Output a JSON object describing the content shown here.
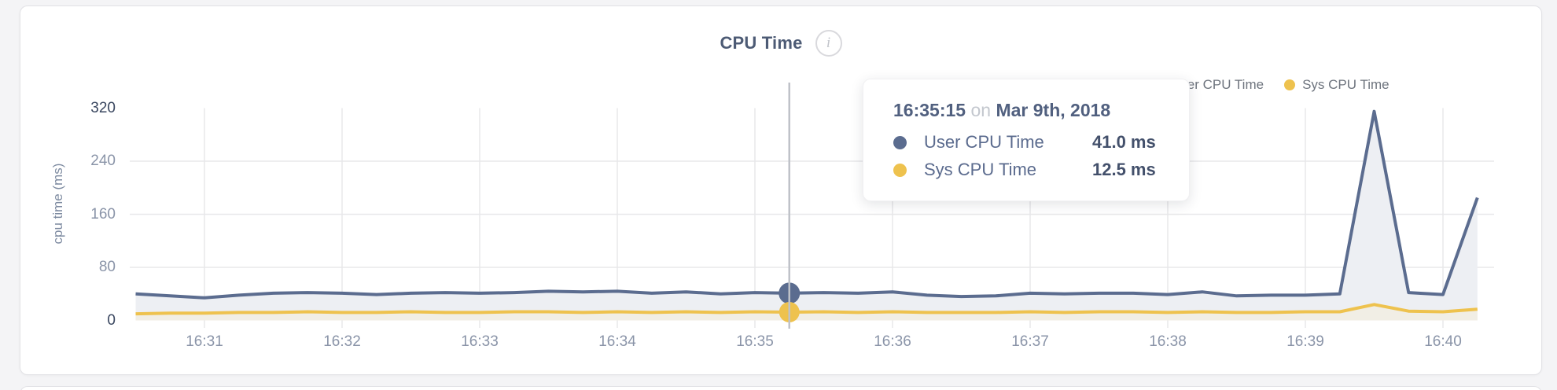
{
  "header": {
    "title": "CPU Time",
    "info_icon": "i"
  },
  "legend": {
    "items": [
      {
        "label": "User CPU Time",
        "color": "#5b6c8f"
      },
      {
        "label": "Sys CPU Time",
        "color": "#eec24e"
      }
    ]
  },
  "tooltip": {
    "time": "16:35:15",
    "connector": "on",
    "date": "Mar 9th, 2018",
    "rows": [
      {
        "label": "User CPU Time",
        "value": "41.0 ms",
        "color": "#5b6c8f"
      },
      {
        "label": "Sys CPU Time",
        "value": "12.5 ms",
        "color": "#eec24e"
      }
    ]
  },
  "chart_data": {
    "type": "area",
    "title": "CPU Time",
    "ylabel": "cpu time (ms)",
    "xlabel": "",
    "ylim": [
      0,
      320
    ],
    "grid": true,
    "legend_position": "top-right",
    "y_ticks": [
      "320",
      "240",
      "160",
      "80",
      "0"
    ],
    "x_ticks": [
      "16:31",
      "16:32",
      "16:33",
      "16:34",
      "16:35",
      "16:36",
      "16:37",
      "16:38",
      "16:39",
      "16:40"
    ],
    "points": {
      "times": [
        "16:30:30",
        "16:30:45",
        "16:31:00",
        "16:31:15",
        "16:31:30",
        "16:31:45",
        "16:32:00",
        "16:32:15",
        "16:32:30",
        "16:32:45",
        "16:33:00",
        "16:33:15",
        "16:33:30",
        "16:33:45",
        "16:34:00",
        "16:34:15",
        "16:34:30",
        "16:34:45",
        "16:35:00",
        "16:35:15",
        "16:35:30",
        "16:35:45",
        "16:36:00",
        "16:36:15",
        "16:36:30",
        "16:36:45",
        "16:37:00",
        "16:37:15",
        "16:37:30",
        "16:37:45",
        "16:38:00",
        "16:38:15",
        "16:38:30",
        "16:38:45",
        "16:39:00",
        "16:39:15",
        "16:39:30",
        "16:39:45",
        "16:40:00",
        "16:40:15"
      ]
    },
    "series": [
      {
        "name": "User CPU Time",
        "color": "#5b6c8f",
        "fill": "#edeff3",
        "values": [
          40,
          37,
          34,
          38,
          41,
          42,
          41,
          39,
          41,
          42,
          41,
          42,
          44,
          43,
          44,
          41,
          43,
          40,
          42,
          41,
          42,
          41,
          43,
          38,
          36,
          37,
          41,
          40,
          41,
          41,
          39,
          43,
          37,
          38,
          38,
          40,
          315,
          42,
          39,
          185
        ]
      },
      {
        "name": "Sys CPU Time",
        "color": "#eec24e",
        "fill": "#f1eee5",
        "values": [
          10,
          11,
          11,
          12,
          12,
          13,
          12,
          12,
          13,
          12,
          12,
          13,
          13,
          12,
          13,
          12,
          13,
          12,
          13,
          12.5,
          13,
          12,
          13,
          12,
          12,
          12,
          13,
          12,
          13,
          13,
          12,
          13,
          12,
          12,
          13,
          13,
          24,
          14,
          13,
          17
        ]
      }
    ],
    "highlighted_time": "16:35:15"
  }
}
